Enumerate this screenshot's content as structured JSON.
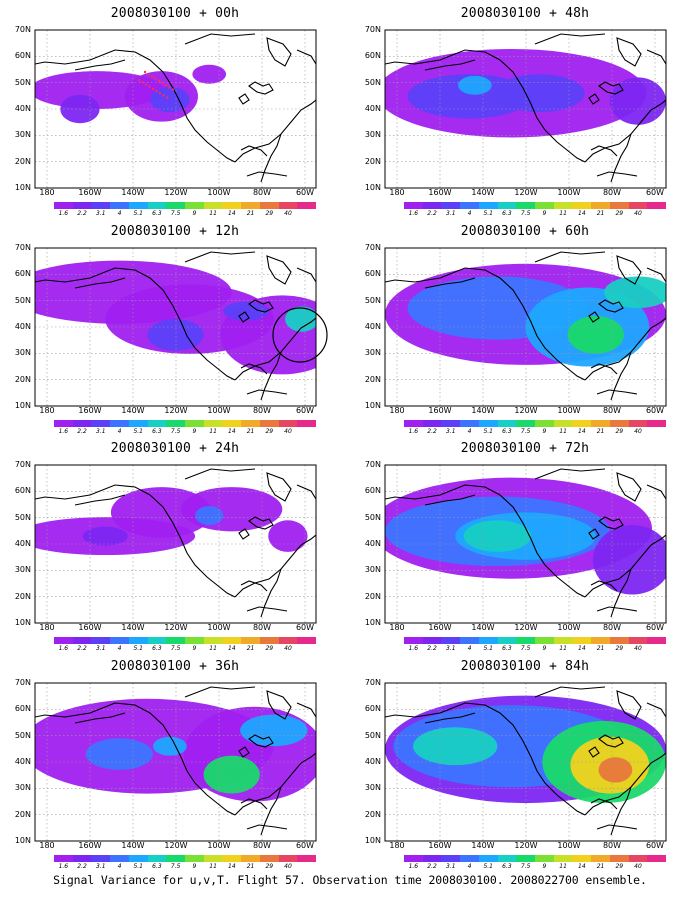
{
  "caption": "Signal Variance for u,v,T. Flight 57. Observation time 2008030100. 2008022700 ensemble.",
  "lat_labels": [
    "70N",
    "60N",
    "50N",
    "40N",
    "30N",
    "20N",
    "10N"
  ],
  "lon_labels": [
    "180",
    "160W",
    "140W",
    "120W",
    "100W",
    "80W",
    "60W"
  ],
  "colorbar": {
    "colors": [
      "#a020f0",
      "#7d26f2",
      "#5b40f8",
      "#3c74ff",
      "#1ea7ff",
      "#17cfc4",
      "#19d96a",
      "#7ae033",
      "#c8e028",
      "#f0d21e",
      "#f0a928",
      "#e8783c",
      "#e64664",
      "#e62a8c"
    ],
    "labels": [
      "1.6",
      "2.2",
      "3.1",
      "4",
      "5.1",
      "6.3",
      "7.5",
      "9",
      "11",
      "14",
      "21",
      "29",
      "40",
      ""
    ]
  },
  "panels": [
    {
      "id": "p00",
      "title": "2008030100 + 00h",
      "level": 0,
      "circle": false
    },
    {
      "id": "p48",
      "title": "2008030100 + 48h",
      "level": 4,
      "circle": false
    },
    {
      "id": "p12",
      "title": "2008030100 + 12h",
      "level": 1,
      "circle": true
    },
    {
      "id": "p60",
      "title": "2008030100 + 60h",
      "level": 5,
      "circle": false
    },
    {
      "id": "p24",
      "title": "2008030100 + 24h",
      "level": 2,
      "circle": false
    },
    {
      "id": "p72",
      "title": "2008030100 + 72h",
      "level": 6,
      "circle": false
    },
    {
      "id": "p36",
      "title": "2008030100 + 36h",
      "level": 3,
      "circle": false
    },
    {
      "id": "p84",
      "title": "2008030100 + 84h",
      "level": 7,
      "circle": false
    }
  ]
}
